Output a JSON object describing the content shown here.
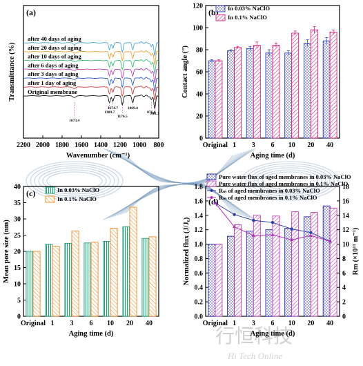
{
  "panels": {
    "a": "(a)",
    "b": "(b)",
    "c": "(c)",
    "d": "(d)"
  },
  "watermark": {
    "text": "行恒科技",
    "sub": "Hi Tech Online"
  },
  "chart_data": [
    {
      "panel": "(a)",
      "type": "line",
      "xlabel": "Wavenumber (cm⁻¹)",
      "ylabel": "Transmittance (%)",
      "xlim": [
        2200,
        800
      ],
      "xticks": [
        2200,
        2000,
        1800,
        1600,
        1400,
        1200,
        1000,
        800
      ],
      "series": [
        {
          "name": "after 40 days of aging",
          "color": "#4aa3d6"
        },
        {
          "name": "after 20 days of aging",
          "color": "#f0a030"
        },
        {
          "name": "after 10 days of aging",
          "color": "#3cb878"
        },
        {
          "name": "after 6 days of aging",
          "color": "#c040c0"
        },
        {
          "name": "after 3 days of aging",
          "color": "#2a5cc8"
        },
        {
          "name": "after 1 day of aging",
          "color": "#d03a3a"
        },
        {
          "name": "Original membrane",
          "color": "#111111"
        }
      ],
      "peaks": [
        1673.4,
        1309.7,
        1274.7,
        1176.5,
        1069.4,
        876.6,
        840.3
      ]
    },
    {
      "panel": "(b)",
      "type": "bar",
      "xlabel": "Aging time (d)",
      "ylabel": "Contact angle (°)",
      "ylim": [
        0,
        120
      ],
      "yticks": [
        0,
        20,
        40,
        60,
        80,
        100,
        120
      ],
      "categories": [
        "Original",
        "1",
        "3",
        "6",
        "10",
        "20",
        "40"
      ],
      "legend_position": "top-left",
      "series": [
        {
          "name": "In 0.03% NaClO",
          "color": "#2a3fb5",
          "values": [
            70,
            79,
            81,
            77,
            77,
            86,
            88
          ],
          "errors": [
            1,
            1,
            2,
            3,
            2,
            3,
            3
          ]
        },
        {
          "name": "In 0.1% NaClO",
          "color": "#d4207a",
          "values": [
            70,
            82,
            84,
            84,
            95,
            98,
            96
          ],
          "errors": [
            1,
            1,
            3,
            2,
            2,
            3,
            2
          ]
        }
      ]
    },
    {
      "panel": "(c)",
      "type": "bar",
      "xlabel": "Aging time (d)",
      "ylabel": "Mean pore size (nm)",
      "ylim": [
        0,
        40
      ],
      "yticks": [
        0,
        5,
        10,
        15,
        20,
        25,
        30,
        35,
        40
      ],
      "categories": [
        "Original",
        "1",
        "3",
        "6",
        "10",
        "20",
        "40"
      ],
      "legend_position": "top-left",
      "series": [
        {
          "name": "In 0.03% NaClO",
          "color": "#1f9c7a",
          "values": [
            20.0,
            22.2,
            22.5,
            22.6,
            23.1,
            27.6,
            24.0
          ]
        },
        {
          "name": "In 0.1% NaClO",
          "color": "#f08a24",
          "values": [
            20.0,
            21.6,
            26.3,
            22.8,
            27.1,
            33.6,
            24.5
          ]
        }
      ]
    },
    {
      "panel": "(d)",
      "type": "bar",
      "xlabel": "Aging time (d)",
      "ylabel": "Normalized flux (J/J₀)",
      "y2label": "Rm (×10¹¹ m⁻¹)",
      "ylim": [
        0,
        1.8
      ],
      "yticks": [
        0.0,
        0.2,
        0.4,
        0.6,
        0.8,
        1.0,
        1.2,
        1.4,
        1.6,
        1.8
      ],
      "y2lim": [
        0,
        18
      ],
      "y2ticks": [
        0,
        2,
        4,
        6,
        8,
        10,
        12,
        14,
        16,
        18
      ],
      "categories": [
        "Original",
        "1",
        "3",
        "6",
        "10",
        "20",
        "40"
      ],
      "legend_position": "top",
      "series": [
        {
          "name": "Pure water flux of aged membranes in 0.03% NaClO",
          "kind": "bar",
          "axis": "left",
          "color": "#2323b0",
          "values": [
            1.0,
            1.11,
            1.18,
            1.2,
            1.22,
            1.38,
            1.53
          ]
        },
        {
          "name": "Pure water flux of aged membranes in 0.1% NaClO",
          "kind": "bar",
          "axis": "left",
          "color": "#c03ab0",
          "values": [
            1.0,
            1.27,
            1.4,
            1.39,
            1.45,
            1.44,
            1.5
          ]
        },
        {
          "name": "Rₘ of aged membranes in 0.03% NaClO",
          "kind": "line",
          "axis": "right",
          "color": "#2a3fa8",
          "values": [
            15.7,
            14.1,
            13.3,
            13.0,
            12.1,
            11.6,
            10.4
          ]
        },
        {
          "name": "Rₘ of aged membranes in 0.1% NaClO",
          "kind": "line",
          "axis": "right",
          "color": "#b030b8",
          "values": [
            15.7,
            12.4,
            11.2,
            11.3,
            10.6,
            11.2,
            10.4
          ]
        }
      ]
    }
  ]
}
